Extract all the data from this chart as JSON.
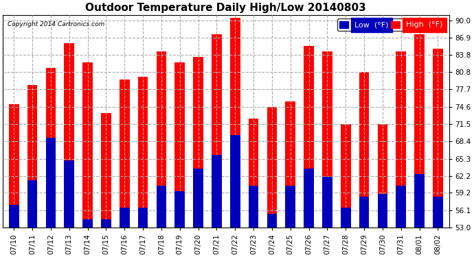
{
  "title": "Outdoor Temperature Daily High/Low 20140803",
  "copyright": "Copyright 2014 Cartronics.com",
  "legend_low": "Low  (°F)",
  "legend_high": "High  (°F)",
  "categories": [
    "07/10",
    "07/11",
    "07/12",
    "07/13",
    "07/14",
    "07/15",
    "07/16",
    "07/17",
    "07/18",
    "07/19",
    "07/20",
    "07/21",
    "07/22",
    "07/23",
    "07/24",
    "07/25",
    "07/26",
    "07/27",
    "07/28",
    "07/29",
    "07/30",
    "07/31",
    "08/01",
    "08/02"
  ],
  "highs": [
    75.0,
    78.5,
    81.5,
    86.0,
    82.5,
    73.5,
    79.5,
    80.0,
    84.5,
    82.5,
    83.5,
    87.5,
    90.5,
    72.5,
    74.5,
    75.5,
    85.5,
    84.5,
    71.5,
    80.8,
    71.5,
    84.5,
    87.5,
    85.0
  ],
  "lows": [
    57.0,
    61.5,
    69.0,
    65.0,
    54.5,
    54.5,
    56.5,
    56.5,
    60.5,
    59.5,
    63.5,
    66.0,
    69.5,
    60.5,
    55.5,
    60.5,
    63.5,
    62.0,
    56.5,
    58.5,
    59.0,
    60.5,
    62.5,
    58.5
  ],
  "ylim_min": 53.0,
  "ylim_max": 91.0,
  "yticks": [
    53.0,
    56.1,
    59.2,
    62.2,
    65.3,
    68.4,
    71.5,
    74.6,
    77.7,
    80.8,
    83.8,
    86.9,
    90.0
  ],
  "bar_width": 0.55,
  "high_color": "#ff0000",
  "low_color": "#0000bb",
  "bg_color": "#ffffff",
  "grid_color": "#aaaaaa",
  "title_fontsize": 11,
  "tick_fontsize": 7.5,
  "legend_fontsize": 8,
  "fig_width": 6.9,
  "fig_height": 3.75,
  "fig_dpi": 100
}
